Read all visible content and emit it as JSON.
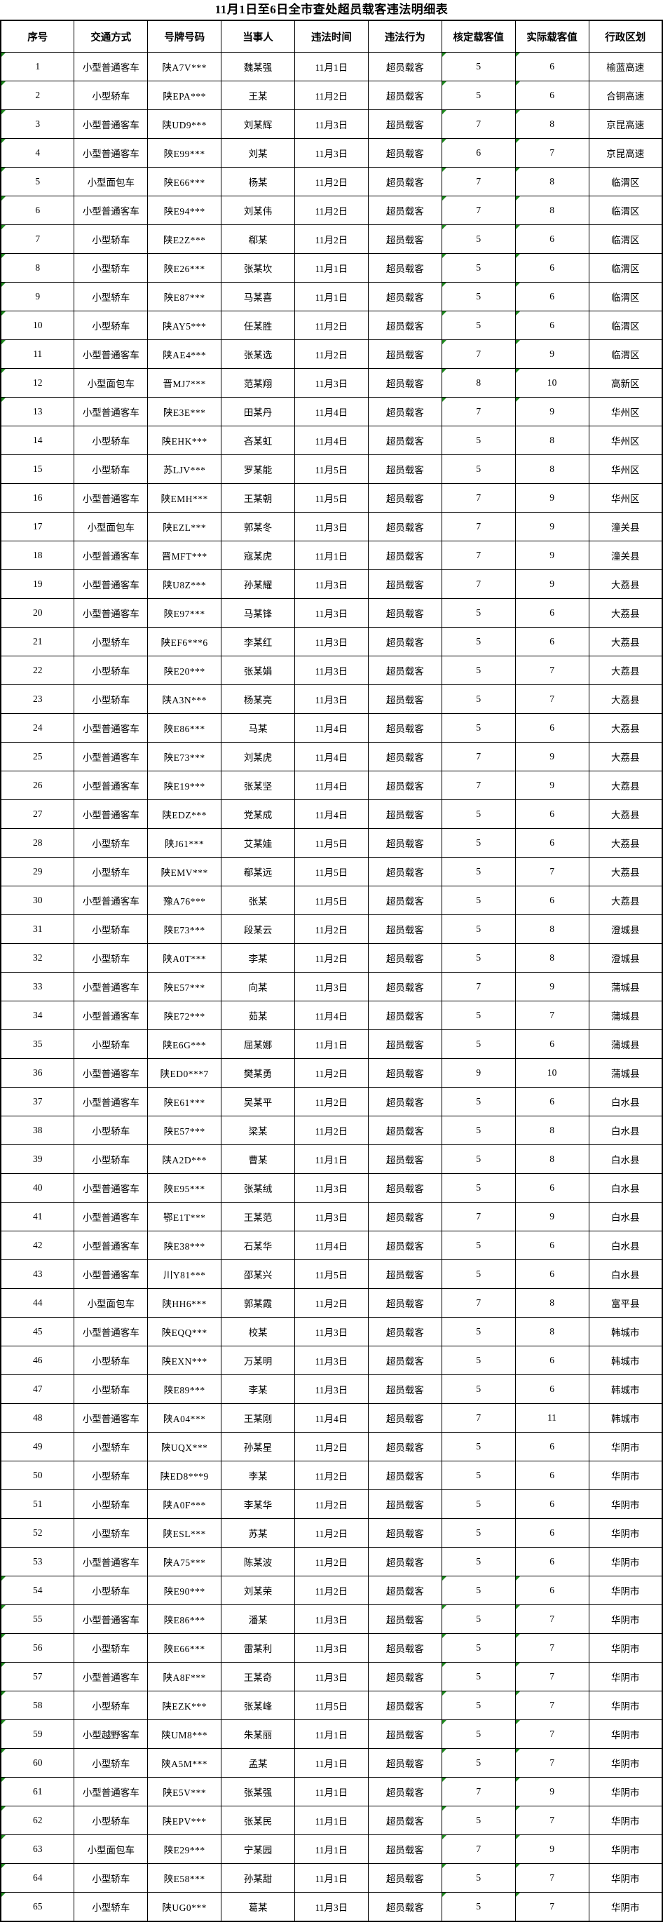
{
  "title": "11月1日至6日全市查处超员载客违法明细表",
  "columns": [
    "序号",
    "交通方式",
    "号牌号码",
    "当事人",
    "违法时间",
    "违法行为",
    "核定载客值",
    "实际载客值",
    "行政区划"
  ],
  "violation_label": "超员载客",
  "indicator_color": "#1f8a1f",
  "indicator_rows": [
    1,
    2,
    3,
    4,
    5,
    6,
    7,
    8,
    9,
    10,
    11,
    12,
    13,
    54,
    55,
    56,
    57,
    58,
    59,
    60,
    61,
    62,
    63,
    64,
    65
  ],
  "indicator_columns": [
    0,
    6,
    7
  ],
  "rows": [
    [
      "1",
      "小型普通客车",
      "陕A7V***",
      "魏某强",
      "11月1日",
      "超员载客",
      "5",
      "6",
      "榆蓝高速"
    ],
    [
      "2",
      "小型轿车",
      "陕EPA***",
      "王某",
      "11月2日",
      "超员载客",
      "5",
      "6",
      "合铜高速"
    ],
    [
      "3",
      "小型普通客车",
      "陕UD9***",
      "刘某辉",
      "11月3日",
      "超员载客",
      "7",
      "8",
      "京昆高速"
    ],
    [
      "4",
      "小型普通客车",
      "陕E99***",
      "刘某",
      "11月3日",
      "超员载客",
      "6",
      "7",
      "京昆高速"
    ],
    [
      "5",
      "小型面包车",
      "陕E66***",
      "杨某",
      "11月2日",
      "超员载客",
      "7",
      "8",
      "临渭区"
    ],
    [
      "6",
      "小型普通客车",
      "陕E94***",
      "刘某伟",
      "11月2日",
      "超员载客",
      "7",
      "8",
      "临渭区"
    ],
    [
      "7",
      "小型轿车",
      "陕E2Z***",
      "郗某",
      "11月2日",
      "超员载客",
      "5",
      "6",
      "临渭区"
    ],
    [
      "8",
      "小型轿车",
      "陕E26***",
      "张某坎",
      "11月1日",
      "超员载客",
      "5",
      "6",
      "临渭区"
    ],
    [
      "9",
      "小型轿车",
      "陕E87***",
      "马某喜",
      "11月1日",
      "超员载客",
      "5",
      "6",
      "临渭区"
    ],
    [
      "10",
      "小型轿车",
      "陕AY5***",
      "任某胜",
      "11月2日",
      "超员载客",
      "5",
      "6",
      "临渭区"
    ],
    [
      "11",
      "小型普通客车",
      "陕AE4***",
      "张某选",
      "11月2日",
      "超员载客",
      "7",
      "9",
      "临渭区"
    ],
    [
      "12",
      "小型面包车",
      "晋MJ7***",
      "范某翔",
      "11月3日",
      "超员载客",
      "8",
      "10",
      "高新区"
    ],
    [
      "13",
      "小型普通客车",
      "陕E3E***",
      "田某丹",
      "11月4日",
      "超员载客",
      "7",
      "9",
      "华州区"
    ],
    [
      "14",
      "小型轿车",
      "陕EHK***",
      "吝某虹",
      "11月4日",
      "超员载客",
      "5",
      "8",
      "华州区"
    ],
    [
      "15",
      "小型轿车",
      "苏LJV***",
      "罗某能",
      "11月5日",
      "超员载客",
      "5",
      "8",
      "华州区"
    ],
    [
      "16",
      "小型普通客车",
      "陕EMH***",
      "王某朝",
      "11月5日",
      "超员载客",
      "7",
      "9",
      "华州区"
    ],
    [
      "17",
      "小型面包车",
      "陕EZL***",
      "郭某冬",
      "11月3日",
      "超员载客",
      "7",
      "9",
      "潼关县"
    ],
    [
      "18",
      "小型普通客车",
      "晋MFT***",
      "寇某虎",
      "11月1日",
      "超员载客",
      "7",
      "9",
      "潼关县"
    ],
    [
      "19",
      "小型普通客车",
      "陕U8Z***",
      "孙某耀",
      "11月3日",
      "超员载客",
      "7",
      "9",
      "大荔县"
    ],
    [
      "20",
      "小型普通客车",
      "陕E97***",
      "马某锋",
      "11月3日",
      "超员载客",
      "5",
      "6",
      "大荔县"
    ],
    [
      "21",
      "小型轿车",
      "陕EF6***6",
      "李某红",
      "11月3日",
      "超员载客",
      "5",
      "6",
      "大荔县"
    ],
    [
      "22",
      "小型轿车",
      "陕E20***",
      "张某娟",
      "11月3日",
      "超员载客",
      "5",
      "7",
      "大荔县"
    ],
    [
      "23",
      "小型轿车",
      "陕A3N***",
      "杨某亮",
      "11月3日",
      "超员载客",
      "5",
      "7",
      "大荔县"
    ],
    [
      "24",
      "小型普通客车",
      "陕E86***",
      "马某",
      "11月4日",
      "超员载客",
      "5",
      "6",
      "大荔县"
    ],
    [
      "25",
      "小型普通客车",
      "陕E73***",
      "刘某虎",
      "11月4日",
      "超员载客",
      "7",
      "9",
      "大荔县"
    ],
    [
      "26",
      "小型普通客车",
      "陕E19***",
      "张某坚",
      "11月4日",
      "超员载客",
      "7",
      "9",
      "大荔县"
    ],
    [
      "27",
      "小型普通客车",
      "陕EDZ***",
      "党某成",
      "11月4日",
      "超员载客",
      "5",
      "6",
      "大荔县"
    ],
    [
      "28",
      "小型轿车",
      "陕J61***",
      "艾某娃",
      "11月5日",
      "超员载客",
      "5",
      "6",
      "大荔县"
    ],
    [
      "29",
      "小型轿车",
      "陕EMV***",
      "郗某远",
      "11月5日",
      "超员载客",
      "5",
      "7",
      "大荔县"
    ],
    [
      "30",
      "小型普通客车",
      "豫A76***",
      "张某",
      "11月5日",
      "超员载客",
      "5",
      "6",
      "大荔县"
    ],
    [
      "31",
      "小型轿车",
      "陕E73***",
      "段某云",
      "11月2日",
      "超员载客",
      "5",
      "8",
      "澄城县"
    ],
    [
      "32",
      "小型轿车",
      "陕A0T***",
      "李某",
      "11月2日",
      "超员载客",
      "5",
      "8",
      "澄城县"
    ],
    [
      "33",
      "小型普通客车",
      "陕E57***",
      "向某",
      "11月3日",
      "超员载客",
      "7",
      "9",
      "蒲城县"
    ],
    [
      "34",
      "小型普通客车",
      "陕E72***",
      "茹某",
      "11月4日",
      "超员载客",
      "5",
      "7",
      "蒲城县"
    ],
    [
      "35",
      "小型轿车",
      "陕E6G***",
      "屈某娜",
      "11月1日",
      "超员载客",
      "5",
      "6",
      "蒲城县"
    ],
    [
      "36",
      "小型普通客车",
      "陕ED0***7",
      "樊某勇",
      "11月2日",
      "超员载客",
      "9",
      "10",
      "蒲城县"
    ],
    [
      "37",
      "小型普通客车",
      "陕E61***",
      "吴某平",
      "11月2日",
      "超员载客",
      "5",
      "6",
      "白水县"
    ],
    [
      "38",
      "小型轿车",
      "陕E57***",
      "梁某",
      "11月2日",
      "超员载客",
      "5",
      "8",
      "白水县"
    ],
    [
      "39",
      "小型轿车",
      "陕A2D***",
      "曹某",
      "11月1日",
      "超员载客",
      "5",
      "8",
      "白水县"
    ],
    [
      "40",
      "小型普通客车",
      "陕E95***",
      "张某绒",
      "11月3日",
      "超员载客",
      "5",
      "6",
      "白水县"
    ],
    [
      "41",
      "小型普通客车",
      "鄂E1T***",
      "王某范",
      "11月3日",
      "超员载客",
      "7",
      "9",
      "白水县"
    ],
    [
      "42",
      "小型普通客车",
      "陕E38***",
      "石某华",
      "11月4日",
      "超员载客",
      "5",
      "6",
      "白水县"
    ],
    [
      "43",
      "小型普通客车",
      "川Y81***",
      "邵某兴",
      "11月5日",
      "超员载客",
      "5",
      "6",
      "白水县"
    ],
    [
      "44",
      "小型面包车",
      "陕HH6***",
      "郭某霞",
      "11月2日",
      "超员载客",
      "7",
      "8",
      "富平县"
    ],
    [
      "45",
      "小型普通客车",
      "陕EQQ***",
      "校某",
      "11月3日",
      "超员载客",
      "5",
      "8",
      "韩城市"
    ],
    [
      "46",
      "小型轿车",
      "陕EXN***",
      "万某明",
      "11月3日",
      "超员载客",
      "5",
      "6",
      "韩城市"
    ],
    [
      "47",
      "小型轿车",
      "陕E89***",
      "李某",
      "11月3日",
      "超员载客",
      "5",
      "6",
      "韩城市"
    ],
    [
      "48",
      "小型普通客车",
      "陕A04***",
      "王某刚",
      "11月4日",
      "超员载客",
      "7",
      "11",
      "韩城市"
    ],
    [
      "49",
      "小型轿车",
      "陕UQX***",
      "孙某星",
      "11月2日",
      "超员载客",
      "5",
      "6",
      "华阴市"
    ],
    [
      "50",
      "小型轿车",
      "陕ED8***9",
      "李某",
      "11月2日",
      "超员载客",
      "5",
      "6",
      "华阴市"
    ],
    [
      "51",
      "小型轿车",
      "陕A0F***",
      "李某华",
      "11月2日",
      "超员载客",
      "5",
      "6",
      "华阴市"
    ],
    [
      "52",
      "小型轿车",
      "陕ESL***",
      "苏某",
      "11月2日",
      "超员载客",
      "5",
      "6",
      "华阴市"
    ],
    [
      "53",
      "小型普通客车",
      "陕A75***",
      "陈某波",
      "11月2日",
      "超员载客",
      "5",
      "6",
      "华阴市"
    ],
    [
      "54",
      "小型轿车",
      "陕E90***",
      "刘某荣",
      "11月2日",
      "超员载客",
      "5",
      "6",
      "华阴市"
    ],
    [
      "55",
      "小型普通客车",
      "陕E86***",
      "潘某",
      "11月3日",
      "超员载客",
      "5",
      "7",
      "华阴市"
    ],
    [
      "56",
      "小型轿车",
      "陕E66***",
      "雷某利",
      "11月3日",
      "超员载客",
      "5",
      "7",
      "华阴市"
    ],
    [
      "57",
      "小型普通客车",
      "陕A8F***",
      "王某奇",
      "11月3日",
      "超员载客",
      "5",
      "7",
      "华阴市"
    ],
    [
      "58",
      "小型轿车",
      "陕EZK***",
      "张某峰",
      "11月5日",
      "超员载客",
      "5",
      "7",
      "华阴市"
    ],
    [
      "59",
      "小型越野客车",
      "陕UM8***",
      "朱某丽",
      "11月1日",
      "超员载客",
      "5",
      "7",
      "华阴市"
    ],
    [
      "60",
      "小型轿车",
      "陕A5M***",
      "孟某",
      "11月1日",
      "超员载客",
      "5",
      "7",
      "华阴市"
    ],
    [
      "61",
      "小型普通客车",
      "陕E5V***",
      "张某强",
      "11月1日",
      "超员载客",
      "7",
      "9",
      "华阴市"
    ],
    [
      "62",
      "小型轿车",
      "陕EPV***",
      "张某民",
      "11月1日",
      "超员载客",
      "5",
      "7",
      "华阴市"
    ],
    [
      "63",
      "小型面包车",
      "陕E29***",
      "宁某园",
      "11月1日",
      "超员载客",
      "7",
      "9",
      "华阴市"
    ],
    [
      "64",
      "小型轿车",
      "陕E58***",
      "孙某甜",
      "11月1日",
      "超员载客",
      "5",
      "7",
      "华阴市"
    ],
    [
      "65",
      "小型轿车",
      "陕UG0***",
      "葛某",
      "11月3日",
      "超员载客",
      "5",
      "7",
      "华阴市"
    ]
  ]
}
